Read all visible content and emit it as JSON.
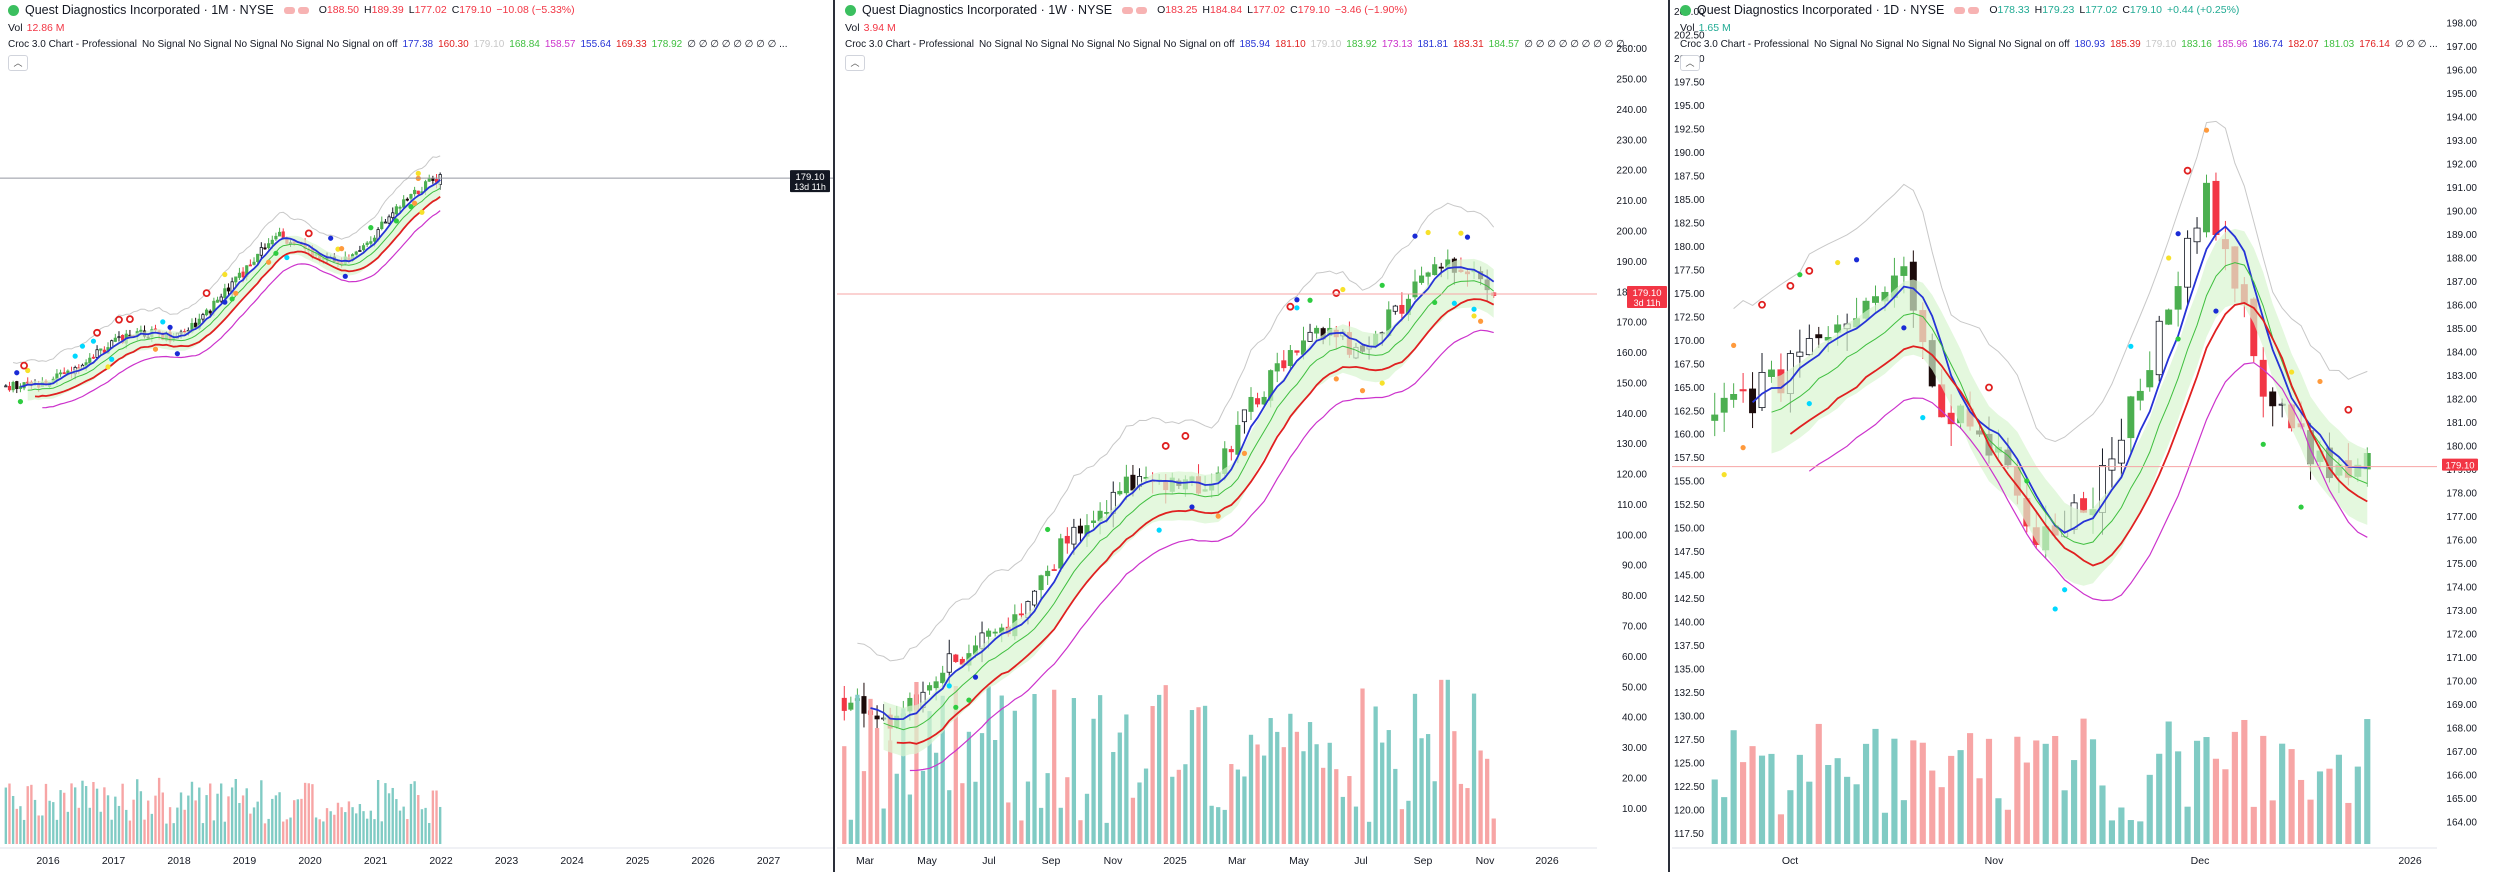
{
  "colors": {
    "up": "#22ab94",
    "down": "#f23645",
    "green_candle": "#4caf50",
    "red_candle": "#f23645",
    "black_candle": "#1b0a0a",
    "blue_line": "#2633d6",
    "red_line": "#e02020",
    "green_line": "#3fbf3f",
    "magenta_line": "#cc33cc",
    "cloud_fill": "#d8f5d0",
    "vol_up": "#80cbc4",
    "vol_down": "#f7a5a5"
  },
  "panels": [
    {
      "id": "monthly",
      "symbol": "Quest Diagnostics Incorporated · 1M · NYSE",
      "ohlc": [
        {
          "k": "O",
          "v": "188.50"
        },
        {
          "k": "H",
          "v": "189.39"
        },
        {
          "k": "L",
          "v": "177.02"
        },
        {
          "k": "C",
          "v": "179.10"
        },
        {
          "k": "",
          "v": "−10.08 (−5.33%)"
        }
      ],
      "ohlc_dir": "down",
      "vol_label": "Vol",
      "vol_value": "12.86 M",
      "vol_dir": "down",
      "indicator_name": "Croc 3.0 Chart - Professional",
      "indicator_flags": "No Signal No Signal No Signal No Signal No Signal on off",
      "indicator_values": [
        {
          "v": "177.38",
          "c": "#2633d6"
        },
        {
          "v": "160.30",
          "c": "#e02020"
        },
        {
          "v": "179.10",
          "c": "#c8c8c8"
        },
        {
          "v": "168.84",
          "c": "#3fbf3f"
        },
        {
          "v": "158.57",
          "c": "#cc33cc"
        },
        {
          "v": "155.64",
          "c": "#2633d6"
        },
        {
          "v": "169.33",
          "c": "#e02020"
        },
        {
          "v": "178.92",
          "c": "#3fbf3f"
        },
        {
          "v": "∅ ∅ ∅ ∅ ∅ ∅ ∅ ∅ ...",
          "c": "#131722"
        }
      ],
      "price_tag": "179.10",
      "price_tag2": "13d 11h",
      "y_ticks": [],
      "x_ticks": [
        "2016",
        "2017",
        "2018",
        "2019",
        "2020",
        "2021",
        "2022",
        "2023",
        "2024",
        "2025",
        "2026",
        "2027"
      ],
      "chart_data": {
        "type": "candlestick",
        "timeframe": "1M",
        "x_range": [
          "2015-07",
          "2027-01"
        ],
        "last_close": 179.1,
        "series": [
          {
            "name": "close_monthly_approx",
            "x": [
              "2016-01",
              "2016-07",
              "2017-01",
              "2017-07",
              "2018-01",
              "2018-07",
              "2019-01",
              "2019-07",
              "2020-01",
              "2020-04",
              "2020-07",
              "2021-01",
              "2021-07",
              "2022-01",
              "2022-07",
              "2023-01",
              "2023-07",
              "2024-01",
              "2024-07",
              "2025-01",
              "2025-07",
              "2025-12"
            ],
            "values": [
              66,
              70,
              85,
              95,
              98,
              108,
              90,
              102,
              108,
              98,
              125,
              140,
              148,
              160,
              138,
              150,
              130,
              136,
              150,
              155,
              175,
              179.1
            ]
          }
        ]
      }
    },
    {
      "id": "weekly",
      "symbol": "Quest Diagnostics Incorporated · 1W · NYSE",
      "ohlc": [
        {
          "k": "O",
          "v": "183.25"
        },
        {
          "k": "H",
          "v": "184.84"
        },
        {
          "k": "L",
          "v": "177.02"
        },
        {
          "k": "C",
          "v": "179.10"
        },
        {
          "k": "",
          "v": "−3.46 (−1.90%)"
        }
      ],
      "ohlc_dir": "down",
      "vol_label": "Vol",
      "vol_value": "3.94 M",
      "vol_dir": "down",
      "indicator_name": "Croc 3.0 Chart - Professional",
      "indicator_flags": "No Signal No Signal No Signal No Signal No Signal on off",
      "indicator_values": [
        {
          "v": "185.94",
          "c": "#2633d6"
        },
        {
          "v": "181.10",
          "c": "#e02020"
        },
        {
          "v": "179.10",
          "c": "#c8c8c8"
        },
        {
          "v": "183.92",
          "c": "#3fbf3f"
        },
        {
          "v": "173.13",
          "c": "#cc33cc"
        },
        {
          "v": "181.81",
          "c": "#2633d6"
        },
        {
          "v": "183.31",
          "c": "#e02020"
        },
        {
          "v": "184.57",
          "c": "#3fbf3f"
        },
        {
          "v": "∅ ∅ ∅ ∅ ∅ ∅ ∅ ∅ ∅ ...",
          "c": "#131722"
        }
      ],
      "price_tag": "179.10",
      "price_tag2": "3d 11h",
      "y_ticks": [
        "260.00",
        "250.00",
        "240.00",
        "230.00",
        "220.00",
        "210.00",
        "200.00",
        "190.00",
        "180.00",
        "170.00",
        "160.00",
        "150.00",
        "140.00",
        "130.00",
        "120.00",
        "110.00",
        "100.00",
        "90.00",
        "80.00",
        "70.00",
        "60.00",
        "50.00",
        "40.00",
        "30.00",
        "20.00",
        "10.00"
      ],
      "x_ticks": [
        "Mar",
        "May",
        "Jul",
        "Sep",
        "Nov",
        "2025",
        "Mar",
        "May",
        "Jul",
        "Sep",
        "Nov",
        "2026"
      ],
      "chart_data": {
        "type": "candlestick",
        "timeframe": "1W",
        "y_range": [
          5,
          265
        ],
        "last_close": 179.1,
        "series": [
          {
            "name": "close_weekly_approx",
            "x": [
              "2024-02",
              "2024-03",
              "2024-05",
              "2024-07",
              "2024-09",
              "2024-11",
              "2025-01",
              "2025-03",
              "2025-05",
              "2025-07",
              "2025-09",
              "2025-11"
            ],
            "values": [
              45,
              40,
              62,
              78,
              110,
              122,
              118,
              160,
              175,
              165,
              185,
              179.1
            ]
          }
        ]
      }
    },
    {
      "id": "daily",
      "symbol": "Quest Diagnostics Incorporated · 1D · NYSE",
      "ohlc": [
        {
          "k": "O",
          "v": "178.33"
        },
        {
          "k": "H",
          "v": "179.23"
        },
        {
          "k": "L",
          "v": "177.02"
        },
        {
          "k": "C",
          "v": "179.10"
        },
        {
          "k": "",
          "v": "+0.44 (+0.25%)"
        }
      ],
      "ohlc_dir": "up",
      "vol_label": "Vol",
      "vol_value": "1.65 M",
      "vol_dir": "up",
      "indicator_name": "Croc 3.0 Chart - Professional",
      "indicator_flags": "No Signal No Signal No Signal No Signal No Signal on off",
      "indicator_values": [
        {
          "v": "180.93",
          "c": "#2633d6"
        },
        {
          "v": "185.39",
          "c": "#e02020"
        },
        {
          "v": "179.10",
          "c": "#c8c8c8"
        },
        {
          "v": "183.16",
          "c": "#3fbf3f"
        },
        {
          "v": "185.96",
          "c": "#cc33cc"
        },
        {
          "v": "186.74",
          "c": "#2633d6"
        },
        {
          "v": "182.07",
          "c": "#e02020"
        },
        {
          "v": "181.03",
          "c": "#3fbf3f"
        },
        {
          "v": "176.14",
          "c": "#e02020"
        },
        {
          "v": "∅ ∅ ∅ ...",
          "c": "#131722"
        }
      ],
      "price_tag": "179.10",
      "price_tag2": "",
      "y_ticks_left": [
        "205.00",
        "202.50",
        "200.00",
        "197.50",
        "195.00",
        "192.50",
        "190.00",
        "187.50",
        "185.00",
        "182.50",
        "180.00",
        "177.50",
        "175.00",
        "172.50",
        "170.00",
        "167.50",
        "165.00",
        "162.50",
        "160.00",
        "157.50",
        "155.00",
        "152.50",
        "150.00",
        "147.50",
        "145.00",
        "142.50",
        "140.00",
        "137.50",
        "135.00",
        "132.50",
        "130.00",
        "127.50",
        "125.00",
        "122.50",
        "120.00",
        "117.50"
      ],
      "y_ticks_right": [
        "198.00",
        "197.00",
        "196.00",
        "195.00",
        "194.00",
        "193.00",
        "192.00",
        "191.00",
        "190.00",
        "189.00",
        "188.00",
        "187.00",
        "186.00",
        "185.00",
        "184.00",
        "183.00",
        "182.00",
        "181.00",
        "180.00",
        "179.00",
        "178.00",
        "177.00",
        "176.00",
        "175.00",
        "174.00",
        "173.00",
        "172.00",
        "171.00",
        "170.00",
        "169.00",
        "168.00",
        "167.00",
        "166.00",
        "165.00",
        "164.00"
      ],
      "x_ticks": [
        "Oct",
        "Nov",
        "Dec",
        "2026"
      ],
      "chart_data": {
        "type": "candlestick",
        "timeframe": "1D",
        "y_range": [
          163.5,
          198.5
        ],
        "last_close": 179.1,
        "series": [
          {
            "name": "close_daily_approx",
            "x": [
              "2025-09-10",
              "2025-09-20",
              "2025-10-01",
              "2025-10-10",
              "2025-10-20",
              "2025-10-28",
              "2025-11-05",
              "2025-11-12",
              "2025-11-20",
              "2025-11-28",
              "2025-12-05",
              "2025-12-12",
              "2025-12-19"
            ],
            "values": [
              181,
              183,
              187,
              190,
              180,
              181,
              176,
              177.5,
              183,
              191,
              182,
              179,
              179.1
            ]
          }
        ]
      }
    }
  ]
}
